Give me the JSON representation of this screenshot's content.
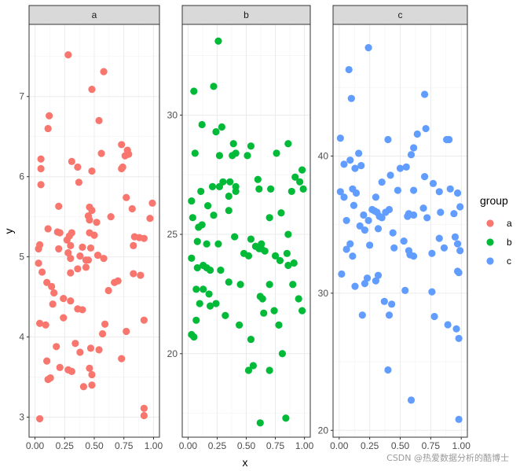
{
  "chart_data": {
    "type": "scatter",
    "xlabel": "x",
    "ylabel": "y",
    "legend": {
      "title": "group",
      "placement": "right",
      "entries": [
        "a",
        "b",
        "c"
      ]
    },
    "colors": {
      "a": "#F8766D",
      "b": "#00BA38",
      "c": "#619CFF"
    },
    "grid": true,
    "watermark": "CSDN @热爱数据分析的酷博士",
    "panels": [
      {
        "strip": "a",
        "group": "a",
        "xlim": [
          -0.05,
          1.05
        ],
        "ylim": [
          2.75,
          7.9
        ],
        "xticks": [
          0.0,
          0.25,
          0.5,
          0.75,
          1.0
        ],
        "xtick_labels": [
          "0.00",
          "0.25",
          "0.50",
          "0.75",
          "1.00"
        ],
        "yticks": [
          3,
          4,
          5,
          6,
          7
        ],
        "ytick_labels": [
          "3",
          "4",
          "5",
          "6",
          "7"
        ],
        "points": [
          [
            0.28,
            7.52
          ],
          [
            0.58,
            7.31
          ],
          [
            0.48,
            7.09
          ],
          [
            0.12,
            6.76
          ],
          [
            0.54,
            6.7
          ],
          [
            0.11,
            6.6
          ],
          [
            0.73,
            6.4
          ],
          [
            0.78,
            6.33
          ],
          [
            0.79,
            6.28
          ],
          [
            0.76,
            6.26
          ],
          [
            0.56,
            6.29
          ],
          [
            0.05,
            6.22
          ],
          [
            0.31,
            6.19
          ],
          [
            0.36,
            6.12
          ],
          [
            0.05,
            6.1
          ],
          [
            0.74,
            6.12
          ],
          [
            0.73,
            6.1
          ],
          [
            0.48,
            6.07
          ],
          [
            0.37,
            5.93
          ],
          [
            0.05,
            5.9
          ],
          [
            0.77,
            5.74
          ],
          [
            0.2,
            5.63
          ],
          [
            0.82,
            5.6
          ],
          [
            0.99,
            5.67
          ],
          [
            0.46,
            5.62
          ],
          [
            0.48,
            5.58
          ],
          [
            0.45,
            5.51
          ],
          [
            0.64,
            5.5
          ],
          [
            0.46,
            5.46
          ],
          [
            0.52,
            5.43
          ],
          [
            0.97,
            5.48
          ],
          [
            0.11,
            5.35
          ],
          [
            0.19,
            5.31
          ],
          [
            0.21,
            5.3
          ],
          [
            0.31,
            5.3
          ],
          [
            0.29,
            5.26
          ],
          [
            0.46,
            5.3
          ],
          [
            0.27,
            5.21
          ],
          [
            0.3,
            5.14
          ],
          [
            0.04,
            5.15
          ],
          [
            0.03,
            5.1
          ],
          [
            0.2,
            5.1
          ],
          [
            0.4,
            5.12
          ],
          [
            0.47,
            5.11
          ],
          [
            0.5,
            5.27
          ],
          [
            0.84,
            5.25
          ],
          [
            0.88,
            5.24
          ],
          [
            0.92,
            5.23
          ],
          [
            0.83,
            5.14
          ],
          [
            0.28,
            5.05
          ],
          [
            0.3,
            4.98
          ],
          [
            0.38,
            5.01
          ],
          [
            0.43,
            4.96
          ],
          [
            0.45,
            4.96
          ],
          [
            0.53,
            5.02
          ],
          [
            0.58,
            4.98
          ],
          [
            0.03,
            4.92
          ],
          [
            0.36,
            4.85
          ],
          [
            0.43,
            4.87
          ],
          [
            0.06,
            4.81
          ],
          [
            0.3,
            4.8
          ],
          [
            0.83,
            4.79
          ],
          [
            0.89,
            4.77
          ],
          [
            0.7,
            4.7
          ],
          [
            0.67,
            4.68
          ],
          [
            0.1,
            4.68
          ],
          [
            0.14,
            4.63
          ],
          [
            0.16,
            4.55
          ],
          [
            0.62,
            4.58
          ],
          [
            0.24,
            4.48
          ],
          [
            0.3,
            4.45
          ],
          [
            0.15,
            4.41
          ],
          [
            0.36,
            4.35
          ],
          [
            0.4,
            4.34
          ],
          [
            0.24,
            4.24
          ],
          [
            0.92,
            4.21
          ],
          [
            0.04,
            4.17
          ],
          [
            0.09,
            4.15
          ],
          [
            0.59,
            4.16
          ],
          [
            0.57,
            4.04
          ],
          [
            0.77,
            4.07
          ],
          [
            0.34,
            3.92
          ],
          [
            0.18,
            3.88
          ],
          [
            0.38,
            3.81
          ],
          [
            0.47,
            3.86
          ],
          [
            0.54,
            3.84
          ],
          [
            0.1,
            3.7
          ],
          [
            0.21,
            3.62
          ],
          [
            0.46,
            3.61
          ],
          [
            0.28,
            3.59
          ],
          [
            0.31,
            3.57
          ],
          [
            0.48,
            3.53
          ],
          [
            0.73,
            3.73
          ],
          [
            0.11,
            3.47
          ],
          [
            0.13,
            3.49
          ],
          [
            0.41,
            3.38
          ],
          [
            0.48,
            3.4
          ],
          [
            0.92,
            3.11
          ],
          [
            0.92,
            3.02
          ],
          [
            0.04,
            2.98
          ]
        ]
      },
      {
        "strip": "b",
        "group": "b",
        "xlim": [
          -0.05,
          1.05
        ],
        "ylim": [
          16.5,
          33.8
        ],
        "xticks": [
          0.0,
          0.25,
          0.5,
          0.75,
          1.0
        ],
        "xtick_labels": [
          "0.00",
          "0.25",
          "0.50",
          "0.75",
          "1.00"
        ],
        "yticks": [
          20,
          25,
          30
        ],
        "ytick_labels": [
          "20",
          "25",
          "30"
        ],
        "points": [
          [
            0.26,
            33.1
          ],
          [
            0.22,
            31.2
          ],
          [
            0.05,
            31.0
          ],
          [
            0.12,
            29.6
          ],
          [
            0.29,
            29.5
          ],
          [
            0.24,
            29.3
          ],
          [
            0.39,
            28.8
          ],
          [
            0.54,
            28.7
          ],
          [
            0.86,
            28.8
          ],
          [
            0.06,
            28.4
          ],
          [
            0.27,
            28.3
          ],
          [
            0.38,
            28.3
          ],
          [
            0.41,
            28.4
          ],
          [
            0.51,
            28.3
          ],
          [
            0.76,
            28.4
          ],
          [
            0.98,
            27.7
          ],
          [
            0.92,
            27.4
          ],
          [
            0.96,
            27.2
          ],
          [
            0.6,
            27.3
          ],
          [
            0.3,
            27.2
          ],
          [
            0.27,
            27.0
          ],
          [
            0.36,
            27.2
          ],
          [
            0.41,
            27.0
          ],
          [
            0.21,
            27.0
          ],
          [
            0.11,
            26.8
          ],
          [
            0.61,
            26.9
          ],
          [
            0.71,
            26.9
          ],
          [
            0.89,
            26.8
          ],
          [
            0.99,
            26.9
          ],
          [
            0.35,
            26.6
          ],
          [
            0.41,
            26.8
          ],
          [
            0.03,
            26.4
          ],
          [
            0.17,
            26.2
          ],
          [
            0.35,
            26.0
          ],
          [
            0.22,
            25.8
          ],
          [
            0.8,
            25.9
          ],
          [
            0.7,
            25.7
          ],
          [
            0.04,
            25.7
          ],
          [
            0.09,
            25.3
          ],
          [
            0.12,
            25.4
          ],
          [
            0.4,
            24.9
          ],
          [
            0.86,
            25.0
          ],
          [
            0.54,
            24.8
          ],
          [
            0.63,
            24.6
          ],
          [
            0.08,
            24.7
          ],
          [
            0.16,
            24.6
          ],
          [
            0.26,
            24.6
          ],
          [
            0.58,
            24.5
          ],
          [
            0.61,
            24.4
          ],
          [
            0.63,
            24.4
          ],
          [
            0.66,
            24.3
          ],
          [
            0.75,
            24.1
          ],
          [
            0.85,
            24.2
          ],
          [
            0.03,
            24.0
          ],
          [
            0.48,
            24.2
          ],
          [
            0.52,
            24.1
          ],
          [
            0.79,
            23.9
          ],
          [
            0.86,
            23.7
          ],
          [
            0.91,
            23.8
          ],
          [
            0.13,
            23.7
          ],
          [
            0.16,
            23.6
          ],
          [
            0.19,
            23.5
          ],
          [
            0.28,
            23.5
          ],
          [
            0.08,
            23.6
          ],
          [
            0.35,
            23.0
          ],
          [
            0.45,
            22.9
          ],
          [
            0.7,
            22.9
          ],
          [
            0.9,
            22.9
          ],
          [
            0.13,
            22.7
          ],
          [
            0.07,
            22.7
          ],
          [
            0.18,
            22.5
          ],
          [
            0.62,
            22.4
          ],
          [
            0.64,
            22.3
          ],
          [
            0.95,
            22.3
          ],
          [
            0.24,
            22.1
          ],
          [
            0.1,
            22.1
          ],
          [
            0.19,
            22.0
          ],
          [
            0.74,
            21.8
          ],
          [
            0.98,
            21.8
          ],
          [
            0.65,
            21.7
          ],
          [
            0.32,
            21.6
          ],
          [
            0.07,
            21.4
          ],
          [
            0.44,
            21.2
          ],
          [
            0.78,
            21.2
          ],
          [
            0.54,
            20.6
          ],
          [
            0.03,
            20.8
          ],
          [
            0.05,
            20.7
          ],
          [
            0.81,
            20.0
          ],
          [
            0.56,
            19.5
          ],
          [
            0.52,
            19.3
          ],
          [
            0.7,
            19.3
          ],
          [
            0.62,
            17.1
          ],
          [
            0.84,
            17.3
          ]
        ]
      },
      {
        "strip": "c",
        "group": "c",
        "xlim": [
          -0.05,
          1.05
        ],
        "ylim": [
          19.5,
          49.6
        ],
        "xticks": [
          0.0,
          0.25,
          0.5,
          0.75,
          1.0
        ],
        "xtick_labels": [
          "0.00",
          "0.25",
          "0.50",
          "0.75",
          "1.00"
        ],
        "yticks": [
          20,
          30,
          40
        ],
        "ytick_labels": [
          "20",
          "30",
          "40"
        ],
        "points": [
          [
            0.24,
            47.9
          ],
          [
            0.08,
            46.3
          ],
          [
            0.1,
            44.2
          ],
          [
            0.7,
            44.5
          ],
          [
            0.71,
            42.0
          ],
          [
            0.64,
            41.6
          ],
          [
            0.88,
            41.2
          ],
          [
            0.9,
            41.2
          ],
          [
            0.01,
            41.3
          ],
          [
            0.4,
            41.2
          ],
          [
            0.61,
            40.6
          ],
          [
            0.16,
            40.2
          ],
          [
            0.59,
            40.1
          ],
          [
            0.09,
            39.7
          ],
          [
            0.04,
            39.4
          ],
          [
            0.18,
            39.3
          ],
          [
            0.5,
            39.1
          ],
          [
            0.55,
            39.2
          ],
          [
            0.13,
            39.1
          ],
          [
            0.42,
            38.6
          ],
          [
            0.35,
            38.1
          ],
          [
            0.7,
            38.5
          ],
          [
            0.77,
            38.0
          ],
          [
            0.82,
            37.4
          ],
          [
            0.01,
            37.4
          ],
          [
            0.04,
            37.0
          ],
          [
            0.11,
            37.6
          ],
          [
            0.14,
            37.3
          ],
          [
            0.3,
            37.0
          ],
          [
            0.48,
            37.5
          ],
          [
            0.61,
            37.5
          ],
          [
            0.91,
            37.6
          ],
          [
            0.97,
            37.3
          ],
          [
            0.12,
            36.4
          ],
          [
            0.27,
            36.1
          ],
          [
            0.29,
            36.0
          ],
          [
            0.31,
            35.9
          ],
          [
            0.38,
            35.9
          ],
          [
            0.2,
            35.7
          ],
          [
            0.24,
            35.3
          ],
          [
            0.33,
            35.6
          ],
          [
            0.35,
            35.5
          ],
          [
            0.41,
            36.1
          ],
          [
            0.56,
            35.6
          ],
          [
            0.57,
            35.8
          ],
          [
            0.61,
            35.7
          ],
          [
            0.69,
            36.2
          ],
          [
            0.83,
            35.9
          ],
          [
            0.94,
            35.8
          ],
          [
            0.99,
            36.3
          ],
          [
            0.72,
            35.5
          ],
          [
            0.06,
            35.3
          ],
          [
            0.17,
            34.9
          ],
          [
            0.21,
            34.6
          ],
          [
            0.32,
            34.7
          ],
          [
            0.44,
            34.4
          ],
          [
            0.82,
            34.0
          ],
          [
            0.95,
            34.1
          ],
          [
            0.09,
            33.6
          ],
          [
            0.06,
            33.2
          ],
          [
            0.25,
            33.5
          ],
          [
            0.45,
            33.3
          ],
          [
            0.53,
            33.8
          ],
          [
            0.57,
            33.1
          ],
          [
            0.58,
            32.8
          ],
          [
            0.61,
            32.7
          ],
          [
            0.86,
            33.3
          ],
          [
            0.97,
            33.6
          ],
          [
            0.99,
            33.1
          ],
          [
            0.11,
            32.7
          ],
          [
            0.76,
            32.9
          ],
          [
            0.02,
            31.4
          ],
          [
            0.23,
            31.1
          ],
          [
            0.21,
            30.7
          ],
          [
            0.3,
            30.9
          ],
          [
            0.32,
            31.3
          ],
          [
            0.13,
            30.5
          ],
          [
            0.54,
            30.2
          ],
          [
            0.37,
            29.4
          ],
          [
            0.43,
            29.2
          ],
          [
            0.41,
            28.4
          ],
          [
            0.97,
            31.6
          ],
          [
            0.98,
            31.5
          ],
          [
            0.19,
            28.4
          ],
          [
            0.76,
            30.1
          ],
          [
            0.78,
            28.3
          ],
          [
            0.89,
            27.7
          ],
          [
            0.96,
            27.4
          ],
          [
            0.98,
            26.7
          ],
          [
            0.4,
            24.4
          ],
          [
            0.59,
            22.2
          ],
          [
            0.98,
            20.8
          ]
        ]
      }
    ]
  }
}
